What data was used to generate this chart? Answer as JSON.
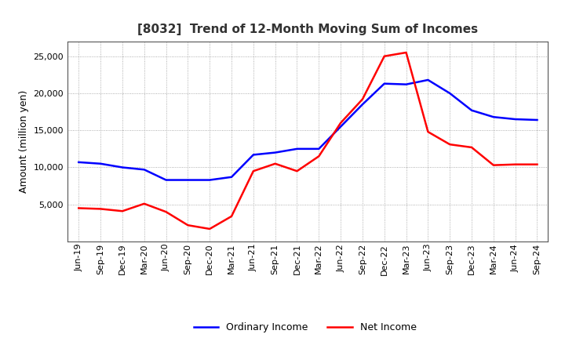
{
  "title": "[8032]  Trend of 12-Month Moving Sum of Incomes",
  "ylabel": "Amount (million yen)",
  "x_labels": [
    "Jun-19",
    "Sep-19",
    "Dec-19",
    "Mar-20",
    "Jun-20",
    "Sep-20",
    "Dec-20",
    "Mar-21",
    "Jun-21",
    "Sep-21",
    "Dec-21",
    "Mar-22",
    "Jun-22",
    "Sep-22",
    "Dec-22",
    "Mar-23",
    "Jun-23",
    "Sep-23",
    "Dec-23",
    "Mar-24",
    "Jun-24",
    "Sep-24"
  ],
  "ordinary_income": [
    10700,
    10500,
    10000,
    9700,
    8300,
    8300,
    8300,
    8700,
    11700,
    12000,
    12500,
    12500,
    15500,
    18500,
    21300,
    21200,
    21800,
    20000,
    17700,
    16800,
    16500,
    16400
  ],
  "net_income": [
    4500,
    4400,
    4100,
    5100,
    4000,
    2200,
    1700,
    3400,
    9500,
    10500,
    9500,
    11500,
    16000,
    19200,
    25000,
    25500,
    14800,
    13100,
    12700,
    10300,
    10400,
    10400
  ],
  "ordinary_color": "#0000ff",
  "net_color": "#ff0000",
  "line_width": 1.8,
  "ylim": [
    0,
    27000
  ],
  "yticks": [
    5000,
    10000,
    15000,
    20000,
    25000
  ],
  "background_color": "#ffffff",
  "grid_color": "#999999",
  "title_fontsize": 11,
  "title_color": "#333333",
  "axis_label_fontsize": 9,
  "tick_fontsize": 8,
  "legend_fontsize": 9
}
